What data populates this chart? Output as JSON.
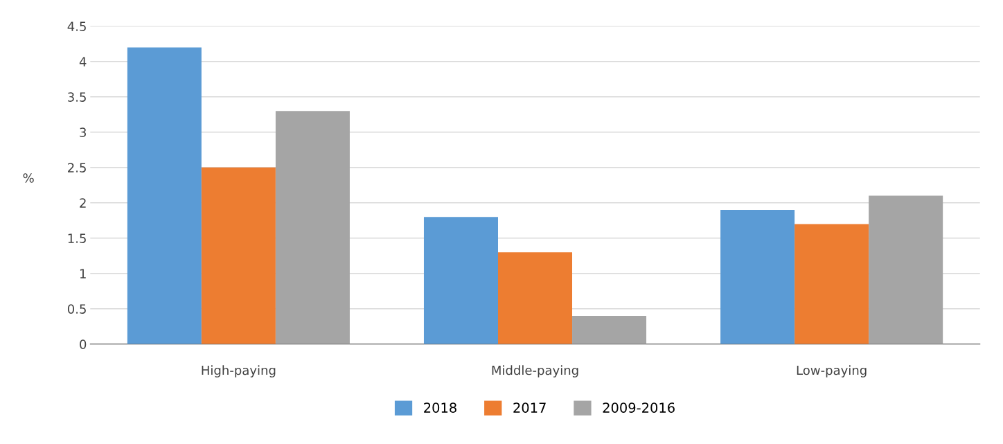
{
  "chart_data": {
    "type": "bar",
    "ylabel": "%",
    "categories": [
      "High-paying",
      "Middle-paying",
      "Low-paying"
    ],
    "series": [
      {
        "name": "2018",
        "color": "#5b9bd5",
        "values": [
          4.2,
          1.8,
          1.9
        ]
      },
      {
        "name": "2017",
        "color": "#ed7d31",
        "values": [
          2.5,
          1.3,
          1.7
        ]
      },
      {
        "name": "2009-2016",
        "color": "#a5a5a5",
        "values": [
          3.3,
          0.4,
          2.1
        ]
      }
    ],
    "ylim": [
      0,
      4.5
    ],
    "yticks": [
      0,
      0.5,
      1,
      1.5,
      2,
      2.5,
      3,
      3.5,
      4,
      4.5
    ],
    "grid": "y",
    "legend": "bottom"
  }
}
